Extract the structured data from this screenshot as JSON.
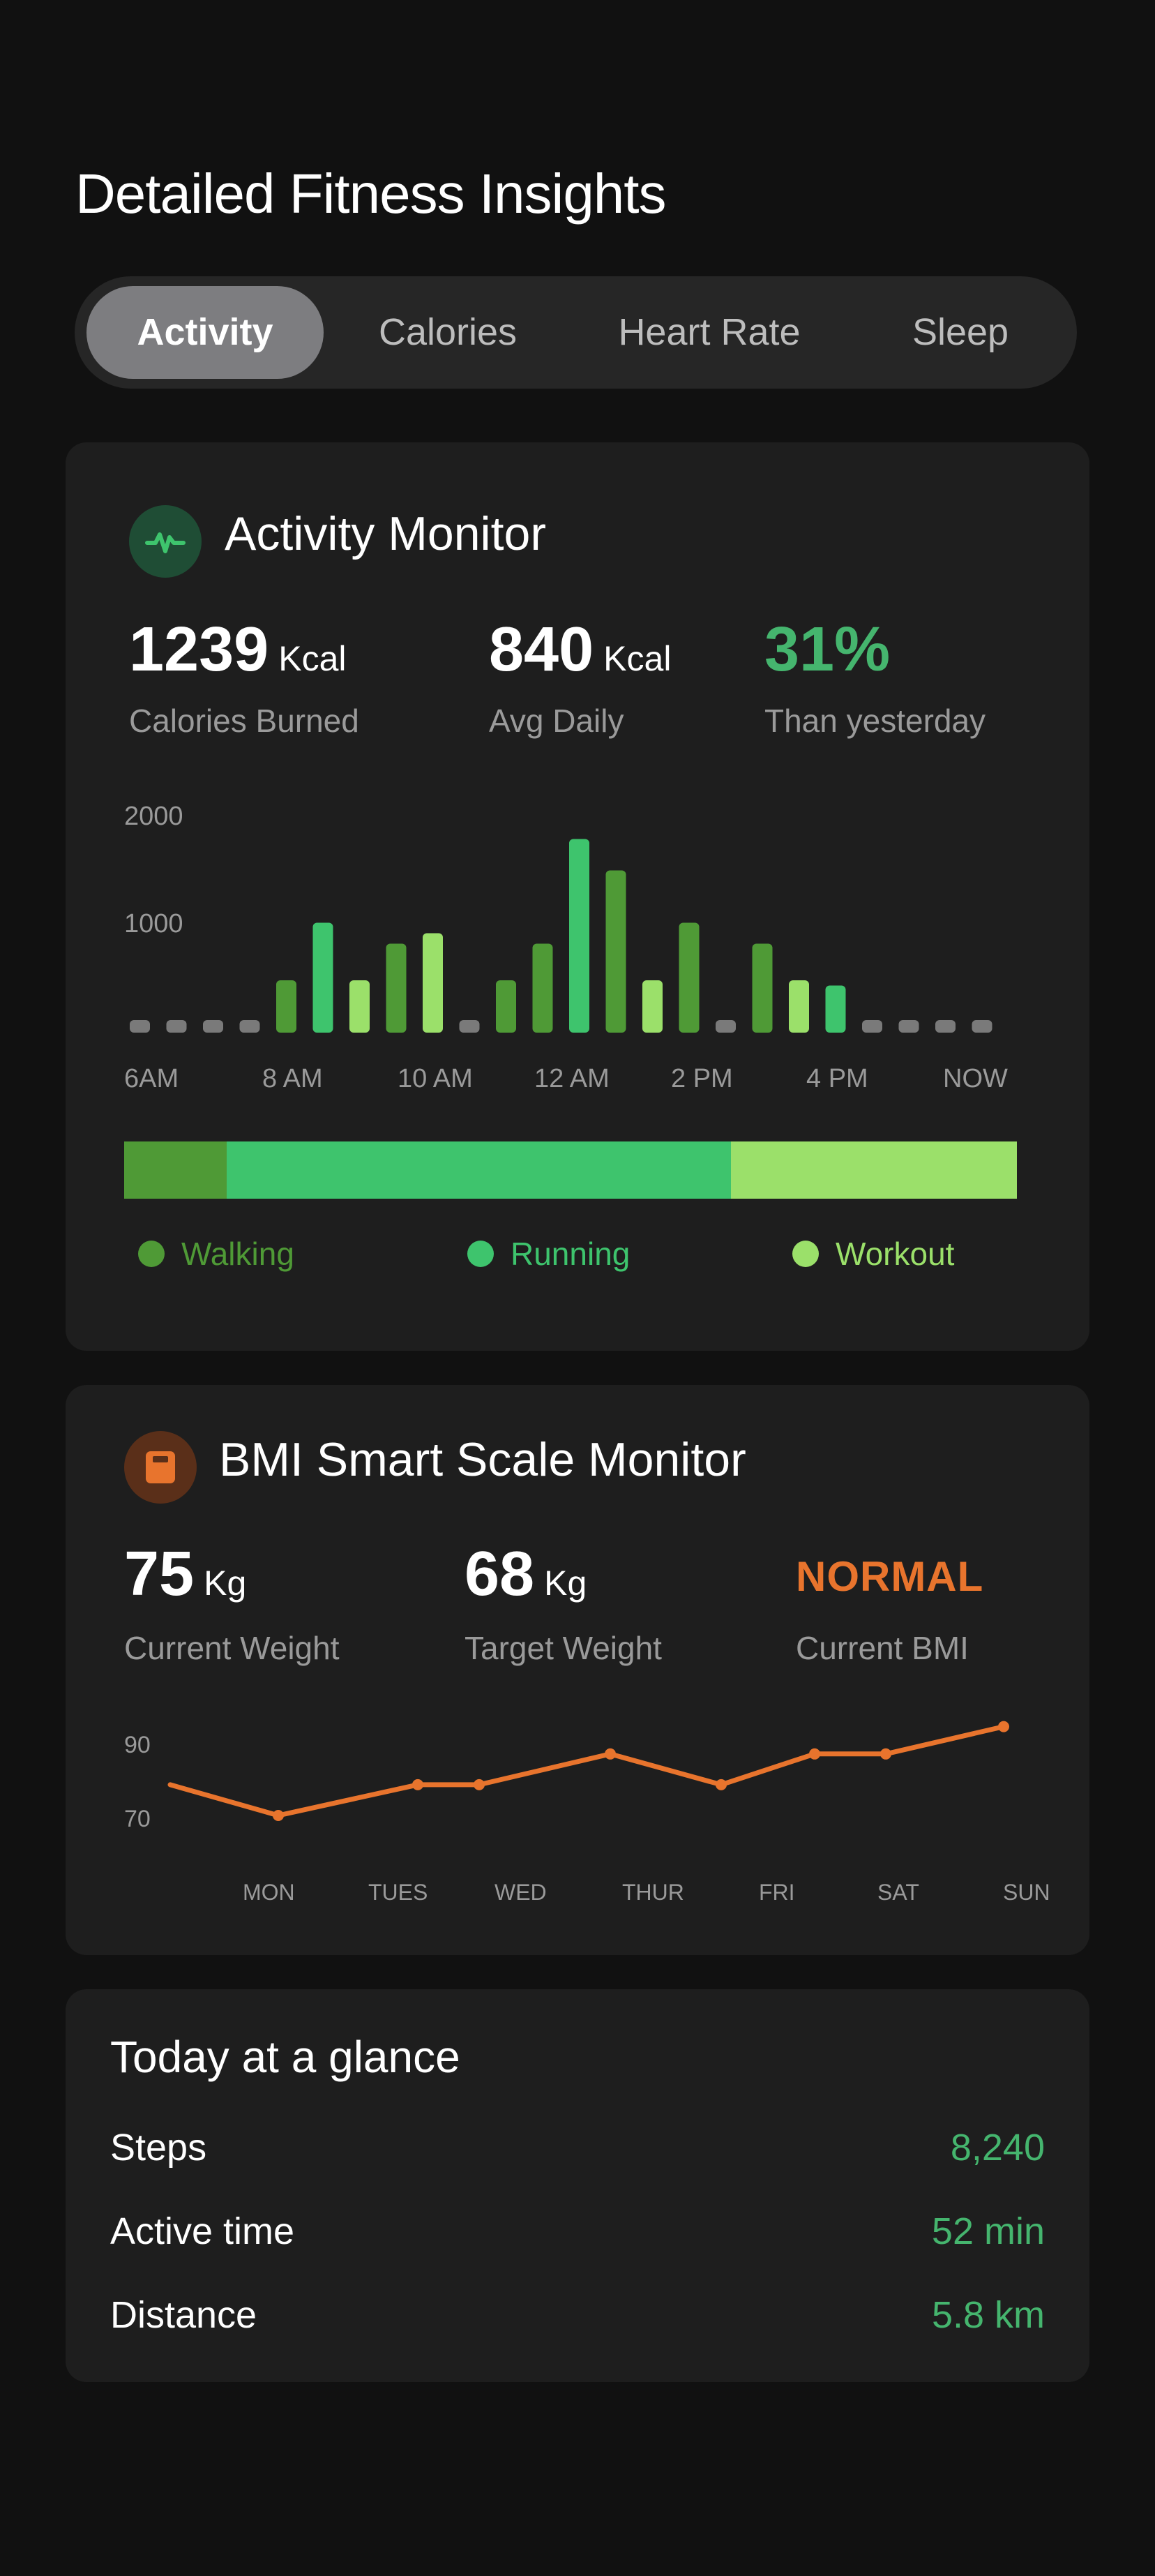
{
  "page": {
    "title": "Detailed Fitness Insights"
  },
  "tabs": [
    {
      "label": "Activity",
      "active": true
    },
    {
      "label": "Calories",
      "active": false
    },
    {
      "label": "Heart Rate",
      "active": false
    },
    {
      "label": "Sleep",
      "active": false
    }
  ],
  "activity": {
    "title": "Activity Monitor",
    "icon": "pulse-icon",
    "stats": [
      {
        "value": "1239",
        "unit": "Kcal",
        "label": "Calories Burned"
      },
      {
        "value": "840",
        "unit": "Kcal",
        "label": "Avg Daily"
      },
      {
        "value": "31%",
        "unit": "",
        "label": "Than yesterday"
      }
    ],
    "legend": [
      {
        "label": "Walking",
        "color": "#4f9a36"
      },
      {
        "label": "Running",
        "color": "#3ec46d"
      },
      {
        "label": "Workout",
        "color": "#9be06a"
      }
    ],
    "split": [
      0.115,
      0.565,
      0.32
    ]
  },
  "chart_data": [
    {
      "type": "bar",
      "y_ticks": [
        "2000",
        "1000"
      ],
      "x_ticks": [
        "6AM",
        "8 AM",
        "10 AM",
        "12 AM",
        "2 PM",
        "4 PM",
        "NOW"
      ],
      "ylim": [
        0,
        2000
      ],
      "values": [
        0,
        0,
        0,
        0,
        500,
        1050,
        500,
        850,
        950,
        0,
        500,
        850,
        1850,
        1550,
        500,
        1050,
        0,
        850,
        500,
        450,
        0,
        0,
        0,
        0
      ],
      "kinds": [
        "none",
        "none",
        "none",
        "none",
        "walking",
        "running",
        "workout",
        "walking",
        "workout",
        "none",
        "walking",
        "walking",
        "running",
        "walking",
        "workout",
        "walking",
        "none",
        "walking",
        "workout",
        "running",
        "none",
        "none",
        "none",
        "none"
      ],
      "grid": false
    },
    {
      "type": "line",
      "categories": [
        "MON",
        "TUES",
        "WED",
        "THUR",
        "FRI",
        "SAT",
        "SUN"
      ],
      "y_ticks": [
        "90",
        "70"
      ],
      "ylim": [
        70,
        90
      ],
      "points": [
        {
          "x": "MON",
          "y": 79
        },
        {
          "x": "TUES",
          "y": 70
        },
        {
          "x": "WED",
          "y": 79
        },
        {
          "x": "WED",
          "y": 79
        },
        {
          "x": "THUR",
          "y": 88
        },
        {
          "x": "FRI",
          "y": 79
        },
        {
          "x": "SAT",
          "y": 88
        },
        {
          "x": "SAT",
          "y": 88
        },
        {
          "x": "SUN",
          "y": 96
        }
      ],
      "color": "#e8742d",
      "grid": false
    }
  ],
  "bmi": {
    "title": "BMI Smart Scale Monitor",
    "icon": "scale-icon",
    "stats": [
      {
        "value": "75",
        "unit": "Kg",
        "label": "Current Weight"
      },
      {
        "value": "68",
        "unit": "Kg",
        "label": "Target Weight"
      },
      {
        "value": "NORMAL",
        "unit": "",
        "label": "Current BMI"
      }
    ]
  },
  "glance": {
    "title": "Today at a glance",
    "rows": [
      {
        "label": "Steps",
        "value": "8,240"
      },
      {
        "label": "Active time",
        "value": "52 min"
      },
      {
        "label": "Distance",
        "value": "5.8 km"
      }
    ]
  },
  "colors": {
    "accent_green": "#45b56e",
    "accent_orange": "#e8742d",
    "card": "#1e1e1e",
    "background": "#111111"
  }
}
